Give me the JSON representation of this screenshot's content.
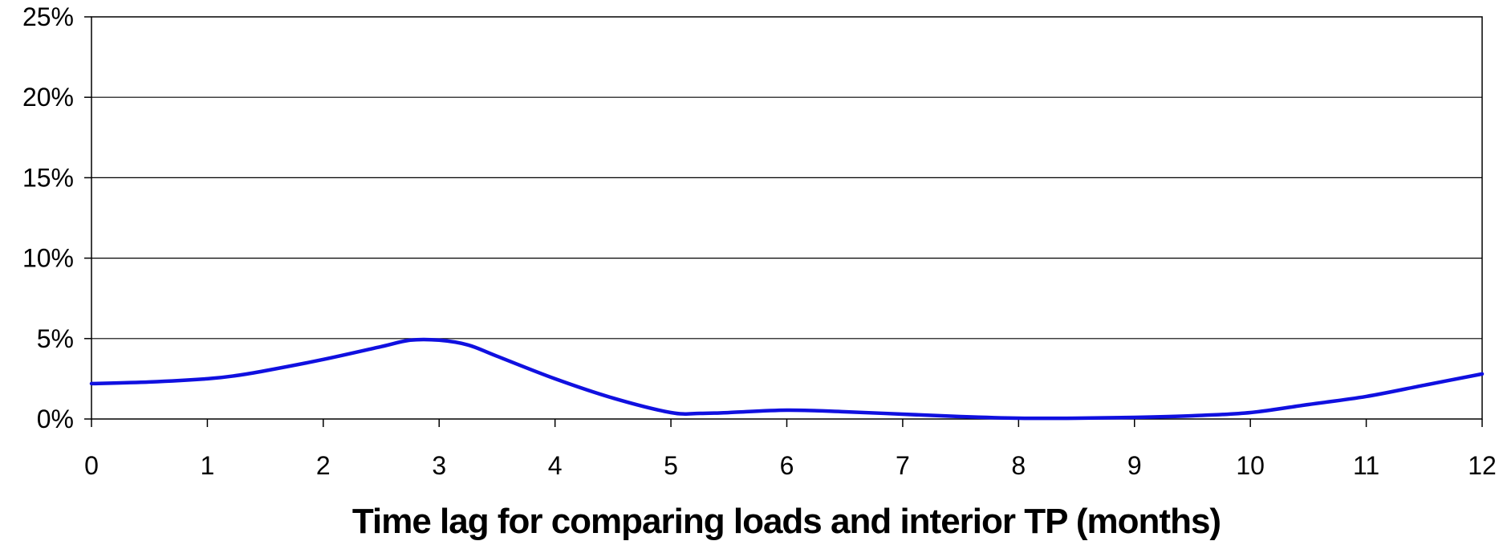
{
  "chart_data": {
    "type": "line",
    "title": "",
    "xlabel": "Time lag for comparing loads and interior TP (months)",
    "ylabel": "",
    "xlim": [
      0,
      12
    ],
    "ylim": [
      0,
      25
    ],
    "x_ticks": [
      "0",
      "1",
      "2",
      "3",
      "4",
      "5",
      "6",
      "7",
      "8",
      "9",
      "10",
      "11",
      "12"
    ],
    "y_ticks": [
      "0%",
      "5%",
      "10%",
      "15%",
      "20%",
      "25%"
    ],
    "grid": "horizontal",
    "legend": "none",
    "series": [
      {
        "color": "#1010e0",
        "x": [
          0,
          0.5,
          1,
          1.25,
          1.5,
          2,
          2.5,
          2.75,
          3,
          3.25,
          3.5,
          4,
          4.5,
          5,
          5.25,
          5.5,
          6,
          6.5,
          7,
          7.5,
          8,
          8.5,
          9,
          9.5,
          10,
          10.5,
          11,
          11.5,
          12
        ],
        "y": [
          2.2,
          2.3,
          2.5,
          2.7,
          3.0,
          3.7,
          4.5,
          4.9,
          4.9,
          4.6,
          3.9,
          2.5,
          1.3,
          0.4,
          0.35,
          0.4,
          0.55,
          0.45,
          0.3,
          0.15,
          0.05,
          0.05,
          0.1,
          0.2,
          0.4,
          0.9,
          1.4,
          2.1,
          2.8
        ]
      }
    ]
  }
}
